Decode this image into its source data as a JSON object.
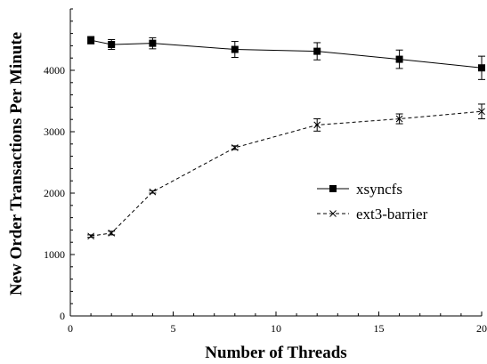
{
  "chart_data": {
    "type": "line",
    "title": "",
    "xlabel": "Number of Threads",
    "ylabel": "New Order Transactions Per Minute",
    "xlim": [
      0,
      20
    ],
    "ylim": [
      0,
      5000
    ],
    "xticks": [
      0,
      5,
      10,
      15,
      20
    ],
    "yticks": [
      0,
      1000,
      2000,
      3000,
      4000
    ],
    "grid": false,
    "legend_position": "right",
    "series": [
      {
        "name": "xsyncfs",
        "marker": "filled-square",
        "line_style": "solid",
        "color": "#000000",
        "x": [
          1,
          2,
          4,
          8,
          12,
          16,
          20
        ],
        "y": [
          4490,
          4420,
          4440,
          4340,
          4310,
          4180,
          4040
        ],
        "error": [
          60,
          80,
          90,
          130,
          140,
          150,
          190
        ]
      },
      {
        "name": "ext3-barrier",
        "marker": "x",
        "line_style": "dashed",
        "color": "#000000",
        "x": [
          1,
          2,
          4,
          8,
          12,
          16,
          20
        ],
        "y": [
          1300,
          1350,
          2020,
          2740,
          3110,
          3210,
          3330
        ],
        "error": [
          20,
          30,
          20,
          30,
          100,
          80,
          120
        ]
      }
    ]
  }
}
